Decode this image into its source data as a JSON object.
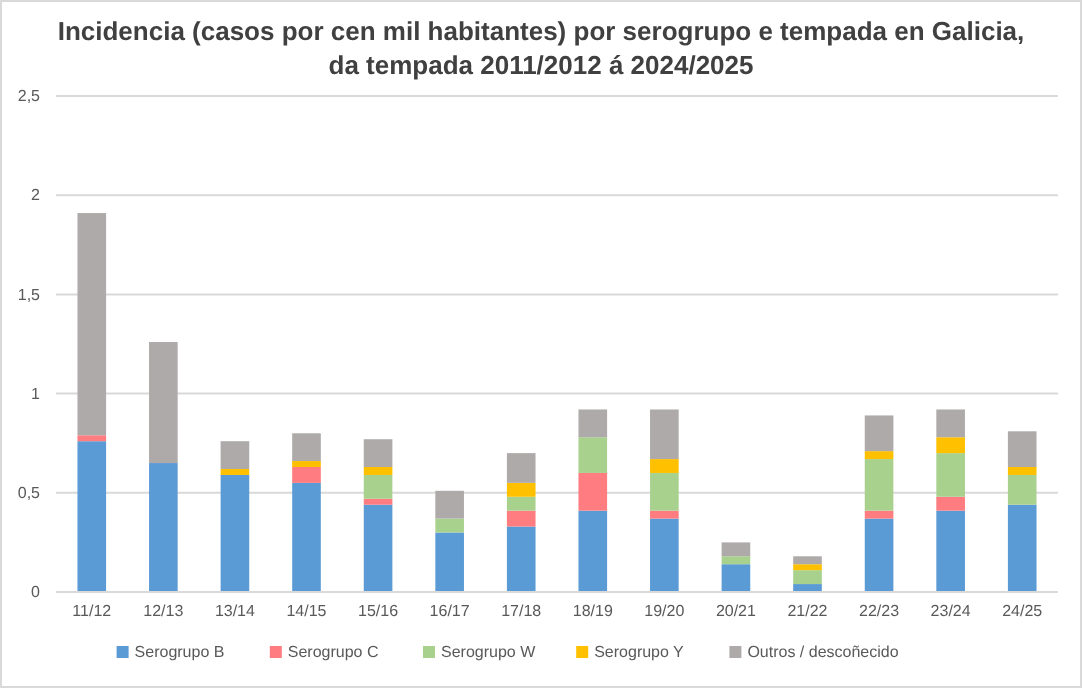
{
  "chart_data": {
    "type": "bar",
    "stacked": true,
    "title": "Incidencia (casos por cen mil habitantes) por serogrupo e tempada en Galicia,\nda tempada 2011/2012 á 2024/2025",
    "categories": [
      "11/12",
      "12/13",
      "13/14",
      "14/15",
      "15/16",
      "16/17",
      "17/18",
      "18/19",
      "19/20",
      "20/21",
      "21/22",
      "22/23",
      "23/24",
      "24/25"
    ],
    "series": [
      {
        "name": "Serogrupo B",
        "color": "#5b9bd5",
        "values": [
          0.76,
          0.65,
          0.59,
          0.55,
          0.44,
          0.3,
          0.33,
          0.41,
          0.37,
          0.14,
          0.04,
          0.37,
          0.41,
          0.44
        ]
      },
      {
        "name": "Serogrupo C",
        "color": "#ff7c80",
        "values": [
          0.03,
          null,
          null,
          0.08,
          0.03,
          null,
          0.08,
          0.19,
          0.04,
          null,
          null,
          0.04,
          0.07,
          null
        ]
      },
      {
        "name": "Serogrupo W",
        "color": "#a9d18e",
        "values": [
          null,
          null,
          null,
          null,
          0.12,
          0.07,
          0.07,
          0.18,
          0.19,
          0.04,
          0.07,
          0.26,
          0.22,
          0.15
        ]
      },
      {
        "name": "Serogrupo Y",
        "color": "#ffc000",
        "values": [
          null,
          null,
          0.03,
          0.03,
          0.04,
          null,
          0.07,
          null,
          0.07,
          null,
          0.03,
          0.04,
          0.08,
          0.04
        ]
      },
      {
        "name": "Outros / descoñecido",
        "color": "#aeaaaa",
        "values": [
          1.12,
          0.61,
          0.14,
          0.14,
          0.14,
          0.14,
          0.15,
          0.14,
          0.25,
          0.07,
          0.04,
          0.18,
          0.14,
          0.18
        ]
      }
    ],
    "ylim": [
      0,
      2.5
    ],
    "yticks": [
      {
        "value": 0,
        "label": "0"
      },
      {
        "value": 0.5,
        "label": "0,5"
      },
      {
        "value": 1,
        "label": "1"
      },
      {
        "value": 1.5,
        "label": "1,5"
      },
      {
        "value": 2,
        "label": "2"
      },
      {
        "value": 2.5,
        "label": "2,5"
      }
    ],
    "grid": "y",
    "legend": "bottom"
  }
}
